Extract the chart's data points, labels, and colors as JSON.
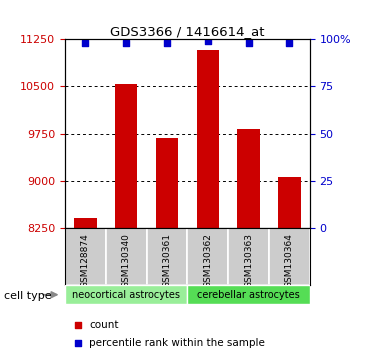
{
  "title": "GDS3366 / 1416614_at",
  "samples": [
    "GSM128874",
    "GSM130340",
    "GSM130361",
    "GSM130362",
    "GSM130363",
    "GSM130364"
  ],
  "counts": [
    8420,
    10540,
    9680,
    11080,
    9830,
    9070
  ],
  "percentile_ranks": [
    98,
    98,
    98,
    99,
    98,
    98
  ],
  "ylim": [
    8250,
    11250
  ],
  "yticks": [
    8250,
    9000,
    9750,
    10500,
    11250
  ],
  "right_yticks": [
    0,
    25,
    50,
    75,
    100
  ],
  "bar_color": "#cc0000",
  "dot_color": "#0000cc",
  "bar_width": 0.55,
  "group1_label": "neocortical astrocytes",
  "group2_label": "cerebellar astrocytes",
  "group1_color": "#99ee99",
  "group2_color": "#55dd55",
  "cell_type_label": "cell type",
  "legend_count_label": "count",
  "legend_pct_label": "percentile rank within the sample",
  "left_tick_color": "#cc0000",
  "right_tick_color": "#0000cc",
  "grid_color": "#000000",
  "sample_box_color": "#cccccc",
  "bg_color": "#ffffff"
}
